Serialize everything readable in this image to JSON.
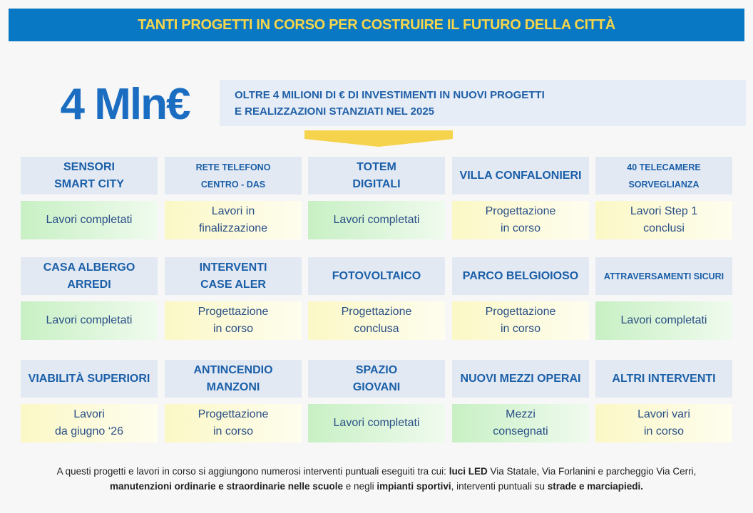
{
  "header": {
    "title": "TANTI PROGETTI IN CORSO PER COSTRUIRE IL FUTURO DELLA CITTÀ"
  },
  "hero": {
    "figure": "4 Mln€",
    "description": [
      "OLTRE 4 MILIONI DI € DI INVESTIMENTI IN NUOVI PROGETTI",
      "E REALIZZAZIONI STANZIATI NEL 2025"
    ]
  },
  "projects": [
    {
      "title": [
        "SENSORI",
        "SMART CITY"
      ],
      "status": [
        "Lavori completati"
      ],
      "color": "#c8f0c4"
    },
    {
      "title": [
        "RETE TELEFONO",
        "CENTRO - DAS"
      ],
      "status": [
        "Lavori in",
        "finalizzazione"
      ],
      "color": "#fbf8c6"
    },
    {
      "title": [
        "TOTEM",
        "DIGITALI"
      ],
      "status": [
        "Lavori completati"
      ],
      "color": "#c8f0c4"
    },
    {
      "title": [
        "VILLA CONFALONIERI"
      ],
      "status": [
        "Progettazione",
        "in corso"
      ],
      "color": "#fbf8c6"
    },
    {
      "title": [
        "40 TELECAMERE",
        "SORVEGLIANZA"
      ],
      "status": [
        "Lavori Step 1",
        "conclusi"
      ],
      "color": "#fbf8c6"
    },
    {
      "title": [
        "CASA ALBERGO",
        "ARREDI"
      ],
      "status": [
        "Lavori completati"
      ],
      "color": "#c8f0c4"
    },
    {
      "title": [
        "INTERVENTI",
        "CASE ALER"
      ],
      "status": [
        "Progettazione",
        "in corso"
      ],
      "color": "#fbf8c6"
    },
    {
      "title": [
        "FOTOVOLTAICO"
      ],
      "status": [
        "Progettazione",
        "conclusa"
      ],
      "color": "#fbf8c6"
    },
    {
      "title": [
        "PARCO BELGIOIOSO"
      ],
      "status": [
        "Progettazione",
        "in corso"
      ],
      "color": "#fbf8c6"
    },
    {
      "title": [
        "ATTRAVERSAMENTI SICURI"
      ],
      "status": [
        "Lavori completati"
      ],
      "color": "#c8f0c4"
    },
    {
      "title": [
        "VIABILITÀ SUPERIORI"
      ],
      "status": [
        "Lavori",
        "da giugno ‘26"
      ],
      "color": "#fbf8c6"
    },
    {
      "title": [
        "ANTINCENDIO",
        "MANZONI"
      ],
      "status": [
        "Progettazione",
        "in corso"
      ],
      "color": "#fbf8c6"
    },
    {
      "title": [
        "SPAZIO",
        "GIOVANI"
      ],
      "status": [
        "Lavori completati"
      ],
      "color": "#c8f0c4"
    },
    {
      "title": [
        "NUOVI MEZZI OPERAI"
      ],
      "status": [
        "Mezzi",
        "consegnati"
      ],
      "color": "#c8f0c4"
    },
    {
      "title": [
        "ALTRI INTERVENTI"
      ],
      "status": [
        "Lavori vari",
        "in corso"
      ],
      "color": "#fbf8c6"
    }
  ],
  "footer": {
    "segments": [
      {
        "text": "A questi progetti e lavori in corso si aggiungono numerosi interventi puntuali eseguiti tra cui:",
        "bold": false
      },
      {
        "text": "luci LED",
        "bold": true
      },
      {
        "text": "Via Statale, Via Forlanini e parcheggio Via Cerri,",
        "bold": false
      },
      {
        "text": "manutenzioni ordinarie e straordinarie nelle scuole",
        "bold": true
      },
      {
        "text": "e negli",
        "bold": false
      },
      {
        "text": "impianti sportivi",
        "bold": true
      },
      {
        "text": ", interventi puntuali su",
        "bold": false
      },
      {
        "text": "strade e marciapiedi.",
        "bold": true
      }
    ]
  }
}
